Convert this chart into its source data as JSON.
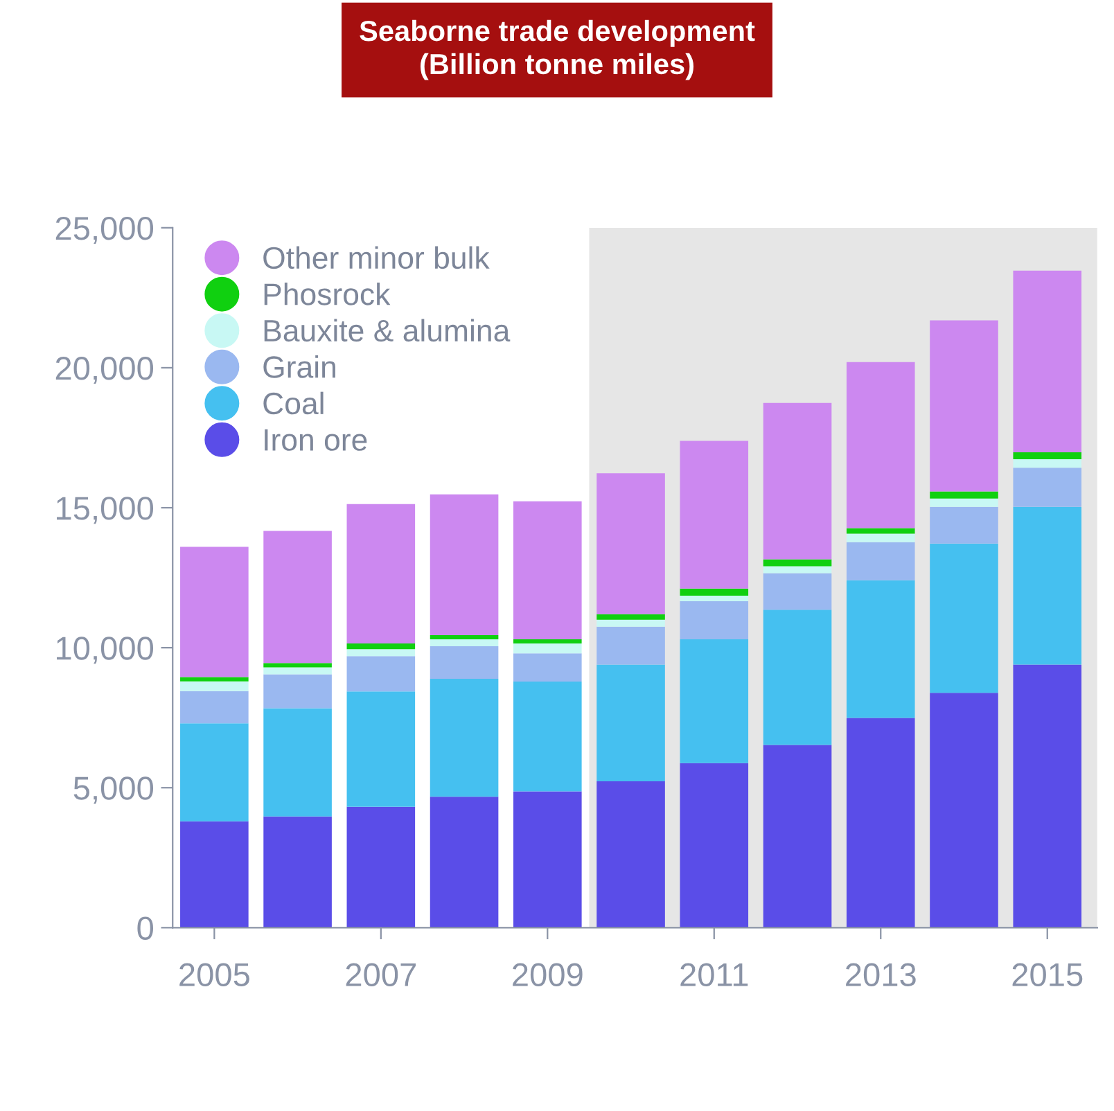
{
  "chart_data": {
    "type": "bar",
    "stacked": true,
    "title": "Seaborne trade development\n(Billion tonne miles)",
    "x": [
      2005,
      2006,
      2007,
      2008,
      2009,
      2010,
      2011,
      2012,
      2013,
      2014,
      2015
    ],
    "series": [
      {
        "name": "Iron ore",
        "color": "#5a4de8",
        "values": [
          3800,
          3970,
          4320,
          4680,
          4870,
          5230,
          5880,
          6530,
          7490,
          8390,
          9400
        ]
      },
      {
        "name": "Coal",
        "color": "#45c0f0",
        "values": [
          3500,
          3870,
          4120,
          4210,
          3920,
          4170,
          4420,
          4830,
          4920,
          5330,
          5630
        ]
      },
      {
        "name": "Grain",
        "color": "#9ab8f0",
        "values": [
          1150,
          1210,
          1260,
          1160,
          1010,
          1350,
          1360,
          1300,
          1360,
          1310,
          1400
        ]
      },
      {
        "name": "Bauxite & alumina",
        "color": "#c8f8f4",
        "values": [
          350,
          250,
          250,
          250,
          350,
          250,
          200,
          250,
          300,
          300,
          300
        ]
      },
      {
        "name": "Phosrock",
        "color": "#10d010",
        "values": [
          150,
          150,
          200,
          150,
          150,
          200,
          250,
          250,
          200,
          250,
          250
        ]
      },
      {
        "name": "Other minor bulk",
        "color": "#cc88f0",
        "values": [
          4650,
          4720,
          4980,
          5030,
          4930,
          5030,
          5280,
          5580,
          5930,
          6110,
          6490
        ]
      }
    ],
    "xlim": [
      2004.5,
      2015.6
    ],
    "xticks": [
      2005,
      2007,
      2009,
      2011,
      2013,
      2015
    ],
    "ylim": [
      0,
      25000
    ],
    "yticks": [
      0,
      {
        "value": 5000,
        "label": "5,000"
      },
      {
        "value": 10000,
        "label": "10,000"
      },
      {
        "value": 15000,
        "label": "15,000"
      },
      {
        "value": 20000,
        "label": "20,000"
      },
      {
        "value": 25000,
        "label": "25,000"
      }
    ],
    "bands": [
      {
        "axis": "x",
        "from": 2009.5,
        "to": 2015.6,
        "color": "#e6e6e6"
      }
    ],
    "legend": "top left",
    "grid": false,
    "marker": "circle"
  }
}
